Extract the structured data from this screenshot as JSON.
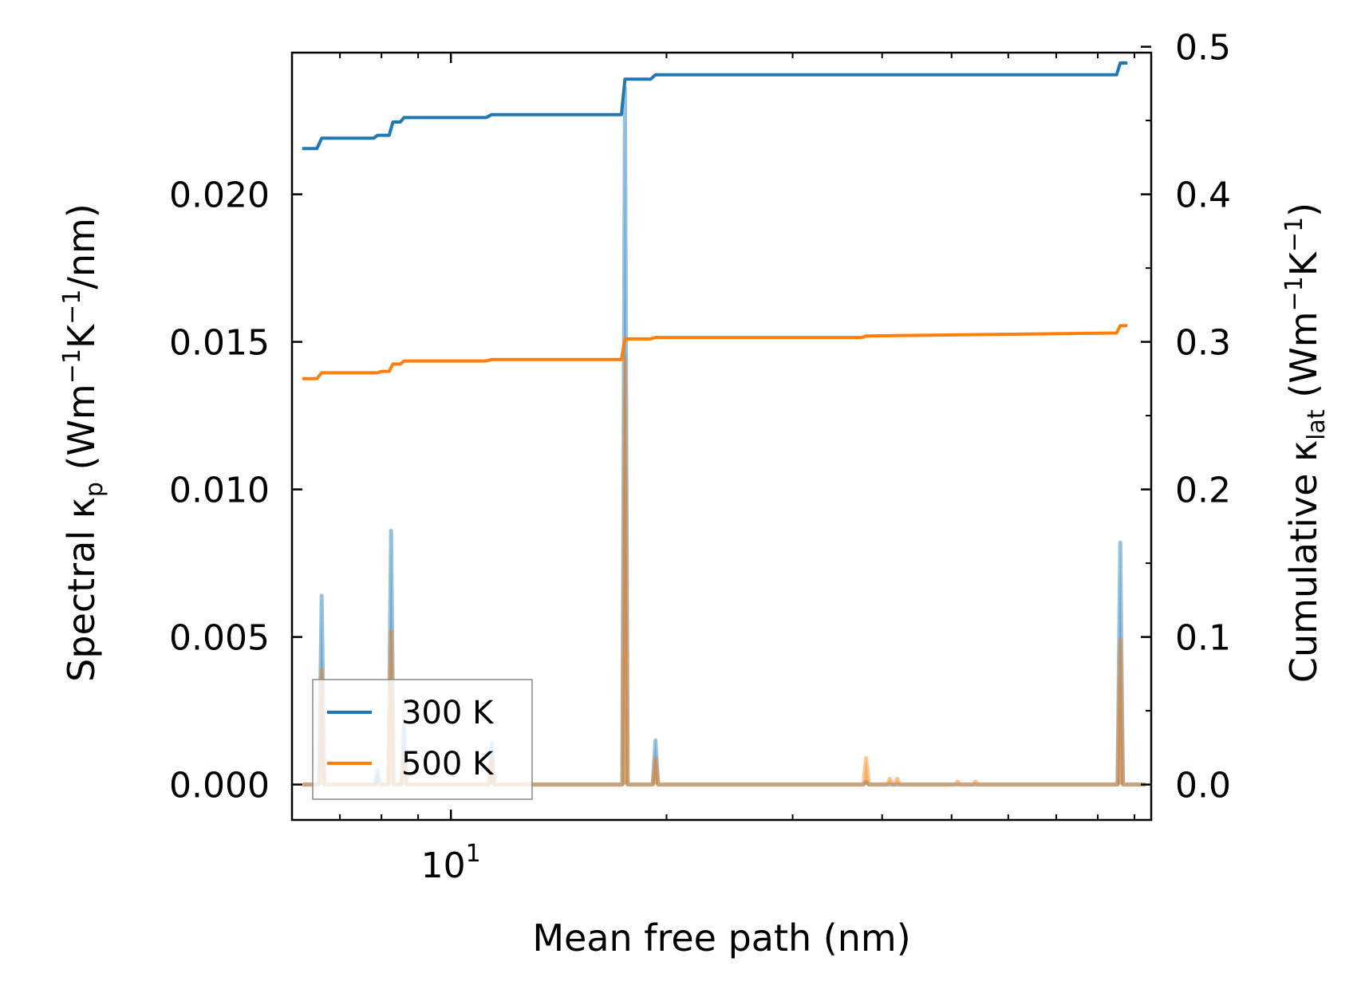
{
  "chart_data": {
    "type": "line",
    "title": "",
    "xlabel": "Mean free path (nm)",
    "ylabel_left": {
      "main": "Spectral κ",
      "sub": "p",
      "unit_open": " (Wm",
      "e1": "−1",
      "k": "K",
      "e2": "−1",
      "unit_close": "/nm)"
    },
    "ylabel_right": {
      "main": "Cumulative κ",
      "sub": "lat",
      "unit_open": " (Wm",
      "e1": "−1",
      "k": "K",
      "e2": "−1",
      "unit_close": ")"
    },
    "xscale": "log",
    "xlim": [
      6.0,
      95.0
    ],
    "ylim_left": [
      -0.0012,
      0.0248
    ],
    "ylim_right": [
      -0.024,
      0.496
    ],
    "x_tick_label": {
      "base": "10",
      "exp": "1",
      "value": 10
    },
    "left_ticks": [
      {
        "value": 0.0,
        "label": "0.000"
      },
      {
        "value": 0.005,
        "label": "0.005"
      },
      {
        "value": 0.01,
        "label": "0.010"
      },
      {
        "value": 0.015,
        "label": "0.015"
      },
      {
        "value": 0.02,
        "label": "0.020"
      }
    ],
    "right_ticks": [
      {
        "value": 0.0,
        "label": "0.0"
      },
      {
        "value": 0.1,
        "label": "0.1"
      },
      {
        "value": 0.2,
        "label": "0.2"
      },
      {
        "value": 0.3,
        "label": "0.3"
      },
      {
        "value": 0.4,
        "label": "0.4"
      },
      {
        "value": 0.5,
        "label": "0.5"
      }
    ],
    "legend_position": "lower-left",
    "series": [
      {
        "name": "300 K",
        "color": "#1f77b4",
        "spectral_peaks": [
          [
            6.6,
            0.0064
          ],
          [
            7.9,
            0.0005
          ],
          [
            8.25,
            0.0086
          ],
          [
            8.6,
            0.002
          ],
          [
            11.4,
            0.0014
          ],
          [
            17.5,
            0.0236
          ],
          [
            19.3,
            0.0015
          ],
          [
            38.0,
            0.0001
          ],
          [
            86.0,
            0.0082
          ]
        ],
        "cumulative": [
          [
            6.2,
            0.431
          ],
          [
            6.5,
            0.431
          ],
          [
            6.6,
            0.438
          ],
          [
            7.8,
            0.438
          ],
          [
            7.9,
            0.44
          ],
          [
            8.2,
            0.44
          ],
          [
            8.3,
            0.449
          ],
          [
            8.5,
            0.449
          ],
          [
            8.6,
            0.452
          ],
          [
            11.2,
            0.452
          ],
          [
            11.4,
            0.454
          ],
          [
            17.3,
            0.454
          ],
          [
            17.5,
            0.478
          ],
          [
            19.0,
            0.478
          ],
          [
            19.3,
            0.481
          ],
          [
            85.0,
            0.481
          ],
          [
            86.0,
            0.489
          ],
          [
            88.0,
            0.489
          ]
        ]
      },
      {
        "name": "500 K",
        "color": "#ff7f0e",
        "spectral_peaks": [
          [
            6.6,
            0.0039
          ],
          [
            8.25,
            0.0052
          ],
          [
            8.6,
            0.0011
          ],
          [
            11.4,
            0.0009
          ],
          [
            17.5,
            0.0145
          ],
          [
            19.3,
            0.0009
          ],
          [
            38.0,
            0.0009
          ],
          [
            41.0,
            0.0002
          ],
          [
            42.0,
            0.0002
          ],
          [
            51.0,
            0.0001
          ],
          [
            54.0,
            0.0001
          ],
          [
            86.0,
            0.0049
          ]
        ],
        "cumulative": [
          [
            6.2,
            0.275
          ],
          [
            6.5,
            0.275
          ],
          [
            6.6,
            0.279
          ],
          [
            7.9,
            0.279
          ],
          [
            8.0,
            0.28
          ],
          [
            8.2,
            0.28
          ],
          [
            8.3,
            0.285
          ],
          [
            8.5,
            0.285
          ],
          [
            8.6,
            0.287
          ],
          [
            11.2,
            0.287
          ],
          [
            11.4,
            0.288
          ],
          [
            17.3,
            0.288
          ],
          [
            17.5,
            0.302
          ],
          [
            19.0,
            0.302
          ],
          [
            19.3,
            0.303
          ],
          [
            37.5,
            0.303
          ],
          [
            38.0,
            0.304
          ],
          [
            85.0,
            0.306
          ],
          [
            86.0,
            0.311
          ],
          [
            88.0,
            0.311
          ]
        ]
      }
    ]
  }
}
